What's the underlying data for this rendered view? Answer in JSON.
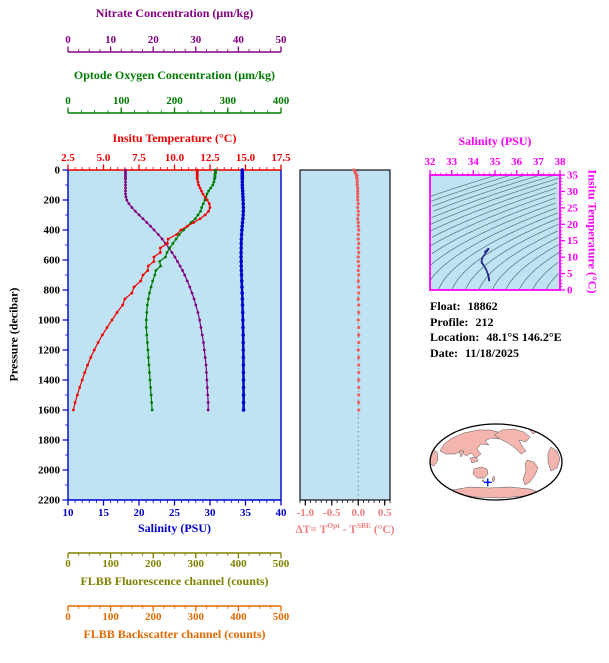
{
  "chart_data": [
    {
      "type": "line",
      "name": "profile-plot",
      "background": "#bfe3f2",
      "ylabel": "Pressure (decibar)",
      "ylim": [
        0,
        2200
      ],
      "y_ticks": [
        "0",
        "200",
        "400",
        "600",
        "800",
        "1000",
        "1200",
        "1400",
        "1600",
        "1800",
        "2000",
        "2200"
      ],
      "pressure_db": [
        0,
        10,
        20,
        30,
        40,
        50,
        60,
        80,
        100,
        120,
        140,
        160,
        180,
        200,
        225,
        250,
        275,
        300,
        325,
        350,
        375,
        400,
        430,
        460,
        490,
        520,
        550,
        580,
        610,
        640,
        670,
        700,
        740,
        780,
        820,
        860,
        900,
        950,
        1000,
        1050,
        1100,
        1150,
        1200,
        1250,
        1300,
        1350,
        1400,
        1450,
        1500,
        1550,
        1600
      ],
      "series": [
        {
          "key": "nitrate",
          "axis_title": "Nitrate Concentration (μm/kg)",
          "color": "#800080",
          "xlim": [
            0,
            50
          ],
          "x_ticks": [
            "0",
            "10",
            "20",
            "30",
            "40",
            "50"
          ],
          "values": [
            13.5,
            13.5,
            13.5,
            13.5,
            13.5,
            13.5,
            13.5,
            13.5,
            13.5,
            13.5,
            13.5,
            13.5,
            13.6,
            13.8,
            14.3,
            15.0,
            15.8,
            16.7,
            17.6,
            18.5,
            19.4,
            20.2,
            21.2,
            22.1,
            22.9,
            23.7,
            24.4,
            25.1,
            25.7,
            26.3,
            26.9,
            27.4,
            28.0,
            28.6,
            29.1,
            29.6,
            30.0,
            30.5,
            30.9,
            31.2,
            31.5,
            31.8,
            32.0,
            32.2,
            32.4,
            32.5,
            32.6,
            32.7,
            32.8,
            32.9,
            32.9
          ]
        },
        {
          "key": "oxygen",
          "axis_title": "Optode Oxygen Concentration (μm/kg)",
          "color": "#007a00",
          "xlim": [
            0,
            400
          ],
          "x_ticks": [
            "0",
            "100",
            "200",
            "300",
            "400"
          ],
          "values": [
            277,
            277,
            277,
            276,
            276,
            276,
            275,
            274,
            272,
            268,
            264,
            261,
            259,
            257,
            254,
            251,
            249,
            244,
            239,
            231,
            224,
            217,
            209,
            203,
            197,
            191,
            186,
            183,
            172,
            174,
            165,
            163,
            159,
            156,
            153,
            151,
            149,
            148,
            147,
            147,
            148,
            149,
            150,
            151,
            152,
            153,
            154,
            155,
            156,
            157,
            158
          ]
        },
        {
          "key": "temperature",
          "axis_title": "Insitu Temperature (°C)",
          "color": "#f00000",
          "xlim": [
            2.5,
            17.5
          ],
          "x_ticks": [
            "2.5",
            "5.0",
            "7.5",
            "10.0",
            "12.5",
            "15.0",
            "17.5"
          ],
          "values": [
            11.6,
            11.6,
            11.6,
            11.6,
            11.6,
            11.6,
            11.6,
            11.65,
            11.7,
            11.8,
            11.9,
            12.0,
            12.15,
            12.3,
            12.45,
            12.5,
            12.4,
            12.15,
            11.8,
            11.35,
            10.9,
            10.45,
            10.15,
            9.55,
            9.5,
            9.0,
            9.0,
            8.55,
            8.55,
            8.15,
            8.12,
            7.78,
            7.62,
            7.15,
            7.0,
            6.5,
            6.35,
            5.95,
            5.6,
            5.25,
            4.92,
            4.62,
            4.35,
            4.1,
            3.88,
            3.68,
            3.5,
            3.32,
            3.16,
            3.0,
            2.88
          ]
        },
        {
          "key": "salinity",
          "axis_title": "Salinity (PSU)",
          "color": "#0000cd",
          "xlim": [
            10,
            40
          ],
          "x_ticks": [
            "10",
            "15",
            "20",
            "25",
            "30",
            "35",
            "40"
          ],
          "values": [
            34.55,
            34.55,
            34.55,
            34.55,
            34.55,
            34.55,
            34.55,
            34.55,
            34.55,
            34.57,
            34.6,
            34.62,
            34.64,
            34.66,
            34.68,
            34.7,
            34.69,
            34.67,
            34.63,
            34.58,
            34.53,
            34.49,
            34.45,
            34.42,
            34.4,
            34.39,
            34.38,
            34.38,
            34.39,
            34.4,
            34.42,
            34.44,
            34.47,
            34.5,
            34.53,
            34.56,
            34.58,
            34.61,
            34.63,
            34.65,
            34.67,
            34.68,
            34.69,
            34.7,
            34.71,
            34.71,
            34.72,
            34.72,
            34.73,
            34.73,
            34.73
          ]
        }
      ],
      "extra_axes": [
        {
          "key": "fluorescence",
          "axis_title": "FLBB Fluorescence channel (counts)",
          "color": "#808000",
          "xlim": [
            0,
            500
          ],
          "x_ticks": [
            "0",
            "100",
            "200",
            "300",
            "400",
            "500"
          ]
        },
        {
          "key": "backscatter",
          "axis_title": "FLBB Backscatter channel (counts)",
          "color": "#e06a00",
          "xlim": [
            0,
            500
          ],
          "x_ticks": [
            "0",
            "100",
            "200",
            "300",
            "400",
            "500"
          ]
        }
      ]
    },
    {
      "type": "scatter",
      "name": "temperature-difference",
      "background": "#bfe3f2",
      "xlabel_parts": {
        "pre": "ΔT= T",
        "sup1": "Opt",
        "mid": " - T",
        "sup2": "SBE",
        "post": " (°C)"
      },
      "color": "#f08080",
      "dot_color": "#f25c5c",
      "xlim": [
        -1.1,
        0.6
      ],
      "x_ticks": [
        "-1.0",
        "-0.5",
        "0.0",
        "0.5"
      ],
      "values": [
        -0.08,
        -0.06,
        -0.05,
        -0.04,
        -0.03,
        -0.03,
        -0.02,
        -0.02,
        -0.02,
        -0.01,
        -0.01,
        -0.01,
        -0.01,
        -0.01,
        0,
        -0.01,
        0,
        0,
        -0.01,
        0,
        0,
        0.01,
        0,
        0,
        0.01,
        0,
        0.01,
        0,
        0,
        0.01,
        0,
        0.01,
        0,
        0.01,
        0.01,
        0,
        0.01,
        0.01,
        0,
        0.01,
        0.01,
        0.01,
        0,
        0.01,
        0.01,
        0.01,
        0.01,
        0.01,
        0.01,
        0.01,
        0.01
      ]
    },
    {
      "type": "line",
      "name": "ts-diagram",
      "background": "#bfe3f2",
      "axis_color": "#ff00ff",
      "xlabel": "Salinity (PSU)",
      "xlim": [
        32,
        38
      ],
      "x_ticks": [
        "32",
        "33",
        "34",
        "35",
        "36",
        "37",
        "38"
      ],
      "ylabel": "Insitu Temperature (°C)",
      "ylim": [
        0,
        35
      ],
      "y_ticks": [
        "0",
        "5",
        "10",
        "15",
        "20",
        "25",
        "30",
        "35"
      ],
      "contour_variable": "sigma-t density",
      "contour_levels": [
        20,
        20.5,
        21,
        21.5,
        22,
        22.5,
        23,
        23.5,
        24,
        24.5,
        25,
        25.5,
        26,
        26.5,
        27,
        27.5,
        28,
        28.5,
        29,
        29.5,
        30
      ],
      "contour_color": "#3d6a66"
    }
  ],
  "info": {
    "rows": [
      {
        "label": "Float:",
        "value": "18862"
      },
      {
        "label": "Profile:",
        "value": "212"
      },
      {
        "label": "Location:",
        "value": "48.1°S  146.2°E"
      },
      {
        "label": "Date:",
        "value": "11/18/2025"
      }
    ]
  },
  "map": {
    "land_color": "#f3b5ae",
    "ocean_color": "#ffffff",
    "outline_color": "#000000",
    "marker_color": "#0020ff",
    "marker": {
      "lat": -48.1,
      "lon": 146.2
    }
  }
}
